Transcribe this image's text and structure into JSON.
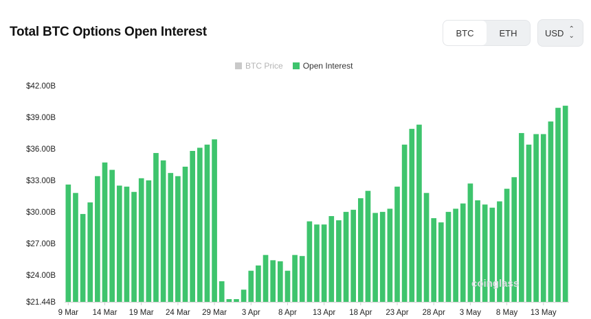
{
  "header": {
    "title": "Total BTC Options Open Interest"
  },
  "asset_toggle": {
    "options": [
      "BTC",
      "ETH"
    ],
    "selected": "BTC"
  },
  "currency_select": {
    "value": "USD"
  },
  "legend": {
    "items": [
      {
        "label": "BTC Price",
        "color": "#c9c9c9",
        "active": false
      },
      {
        "label": "Open Interest",
        "color": "#3ec46d",
        "active": true
      }
    ]
  },
  "watermark": "coinglass",
  "chart_data": {
    "type": "bar",
    "series": [
      {
        "name": "Open Interest",
        "color": "#3ec46d"
      }
    ],
    "ylim": [
      21.44,
      42.0
    ],
    "y_ticks": [
      {
        "value": 21.44,
        "label": "$21.44B"
      },
      {
        "value": 24.0,
        "label": "$24.00B"
      },
      {
        "value": 27.0,
        "label": "$27.00B"
      },
      {
        "value": 30.0,
        "label": "$30.00B"
      },
      {
        "value": 33.0,
        "label": "$33.00B"
      },
      {
        "value": 36.0,
        "label": "$36.00B"
      },
      {
        "value": 39.0,
        "label": "$39.00B"
      },
      {
        "value": 42.0,
        "label": "$42.00B"
      }
    ],
    "x_tick_labels": [
      {
        "index": 0,
        "label": "9 Mar"
      },
      {
        "index": 5,
        "label": "14 Mar"
      },
      {
        "index": 10,
        "label": "19 Mar"
      },
      {
        "index": 15,
        "label": "24 Mar"
      },
      {
        "index": 20,
        "label": "29 Mar"
      },
      {
        "index": 25,
        "label": "3 Apr"
      },
      {
        "index": 30,
        "label": "8 Apr"
      },
      {
        "index": 35,
        "label": "13 Apr"
      },
      {
        "index": 40,
        "label": "18 Apr"
      },
      {
        "index": 45,
        "label": "23 Apr"
      },
      {
        "index": 50,
        "label": "28 Apr"
      },
      {
        "index": 55,
        "label": "3 May"
      },
      {
        "index": 60,
        "label": "8 May"
      },
      {
        "index": 65,
        "label": "13 May"
      }
    ],
    "values": [
      32.6,
      31.8,
      29.8,
      30.9,
      33.4,
      34.7,
      34.0,
      32.5,
      32.4,
      31.9,
      33.2,
      33.0,
      35.6,
      34.9,
      33.7,
      33.4,
      34.3,
      35.8,
      36.1,
      36.4,
      36.9,
      23.4,
      21.7,
      21.7,
      22.6,
      24.4,
      24.9,
      25.9,
      25.4,
      25.3,
      24.4,
      25.9,
      25.8,
      29.1,
      28.8,
      28.8,
      29.6,
      29.2,
      30.0,
      30.2,
      31.3,
      32.0,
      29.9,
      30.0,
      30.3,
      32.4,
      36.4,
      37.9,
      38.3,
      31.8,
      29.4,
      29.0,
      30.0,
      30.3,
      30.8,
      32.7,
      31.1,
      30.7,
      30.4,
      31.0,
      32.2,
      33.3,
      37.5,
      36.4,
      37.4,
      37.4,
      38.6,
      39.9,
      40.1
    ]
  }
}
